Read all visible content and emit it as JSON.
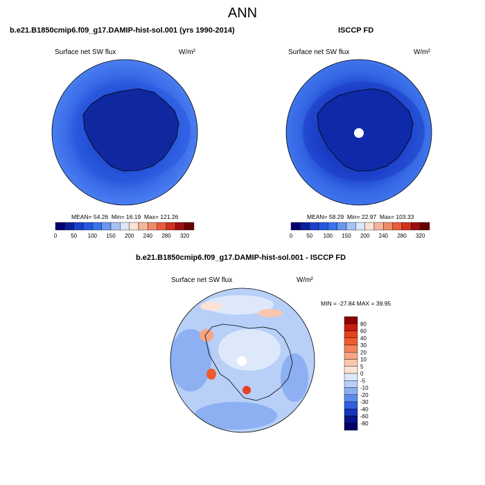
{
  "page": {
    "title": "ANN"
  },
  "chart_data": [
    {
      "type": "heatmap",
      "projection": "south-polar-stereographic",
      "title": "b.e21.B1850cmip6.f09_g17.DAMIP-hist-sol.001 (yrs 1990-2014)",
      "variable": "Surface net SW flux",
      "units": "W/m²",
      "stats": {
        "mean_label": "MEAN=",
        "mean": "54.26",
        "min_label": "Min=",
        "min": "16.19",
        "max_label": "Max=",
        "max": "121.26"
      },
      "colorbar": {
        "orientation": "horizontal",
        "tick_labels": [
          "0",
          "50",
          "100",
          "150",
          "200",
          "240",
          "280",
          "320"
        ],
        "colors": [
          "#00006e",
          "#0a1f9c",
          "#1a3fcc",
          "#2558e0",
          "#3a72ec",
          "#6a96f0",
          "#a6c2f5",
          "#d9e6fb",
          "#fbe2d4",
          "#f6b59b",
          "#f08a68",
          "#e85c3a",
          "#d22f1f",
          "#9c0f0f",
          "#6b0000"
        ]
      }
    },
    {
      "type": "heatmap",
      "projection": "south-polar-stereographic",
      "title": "ISCCP FD",
      "variable": "Surface net SW flux",
      "units": "W/m²",
      "stats": {
        "mean_label": "MEAN=",
        "mean": "58.29",
        "min_label": "Min=",
        "min": "22.97",
        "max_label": "Max=",
        "max": "103.33"
      },
      "colorbar": {
        "orientation": "horizontal",
        "tick_labels": [
          "0",
          "50",
          "100",
          "150",
          "200",
          "240",
          "280",
          "320"
        ],
        "colors": [
          "#00006e",
          "#0a1f9c",
          "#1a3fcc",
          "#2558e0",
          "#3a72ec",
          "#6a96f0",
          "#a6c2f5",
          "#d9e6fb",
          "#fbe2d4",
          "#f6b59b",
          "#f08a68",
          "#e85c3a",
          "#d22f1f",
          "#9c0f0f",
          "#6b0000"
        ]
      }
    },
    {
      "type": "heatmap",
      "projection": "south-polar-stereographic",
      "title": "b.e21.B1850cmip6.f09_g17.DAMIP-hist-sol.001 - ISCCP FD",
      "variable": "Surface net SW flux",
      "units": "W/m²",
      "stats": {
        "min_label": "MIN =",
        "min": "-27.84",
        "max_label": "MAX =",
        "max": "39.95"
      },
      "colorbar": {
        "orientation": "vertical",
        "tick_labels": [
          "80",
          "60",
          "40",
          "30",
          "20",
          "10",
          "5",
          "0",
          "-5",
          "-10",
          "-20",
          "-30",
          "-40",
          "-60",
          "-80"
        ],
        "colors": [
          "#8b0000",
          "#c81d0f",
          "#e5401f",
          "#f05c30",
          "#f4825a",
          "#f7a585",
          "#fac6ae",
          "#fde3d6",
          "#dde9fb",
          "#b8cff7",
          "#8cb0f2",
          "#5d8bec",
          "#2f5fe0",
          "#1636b8",
          "#06158a",
          "#000066"
        ]
      }
    }
  ]
}
